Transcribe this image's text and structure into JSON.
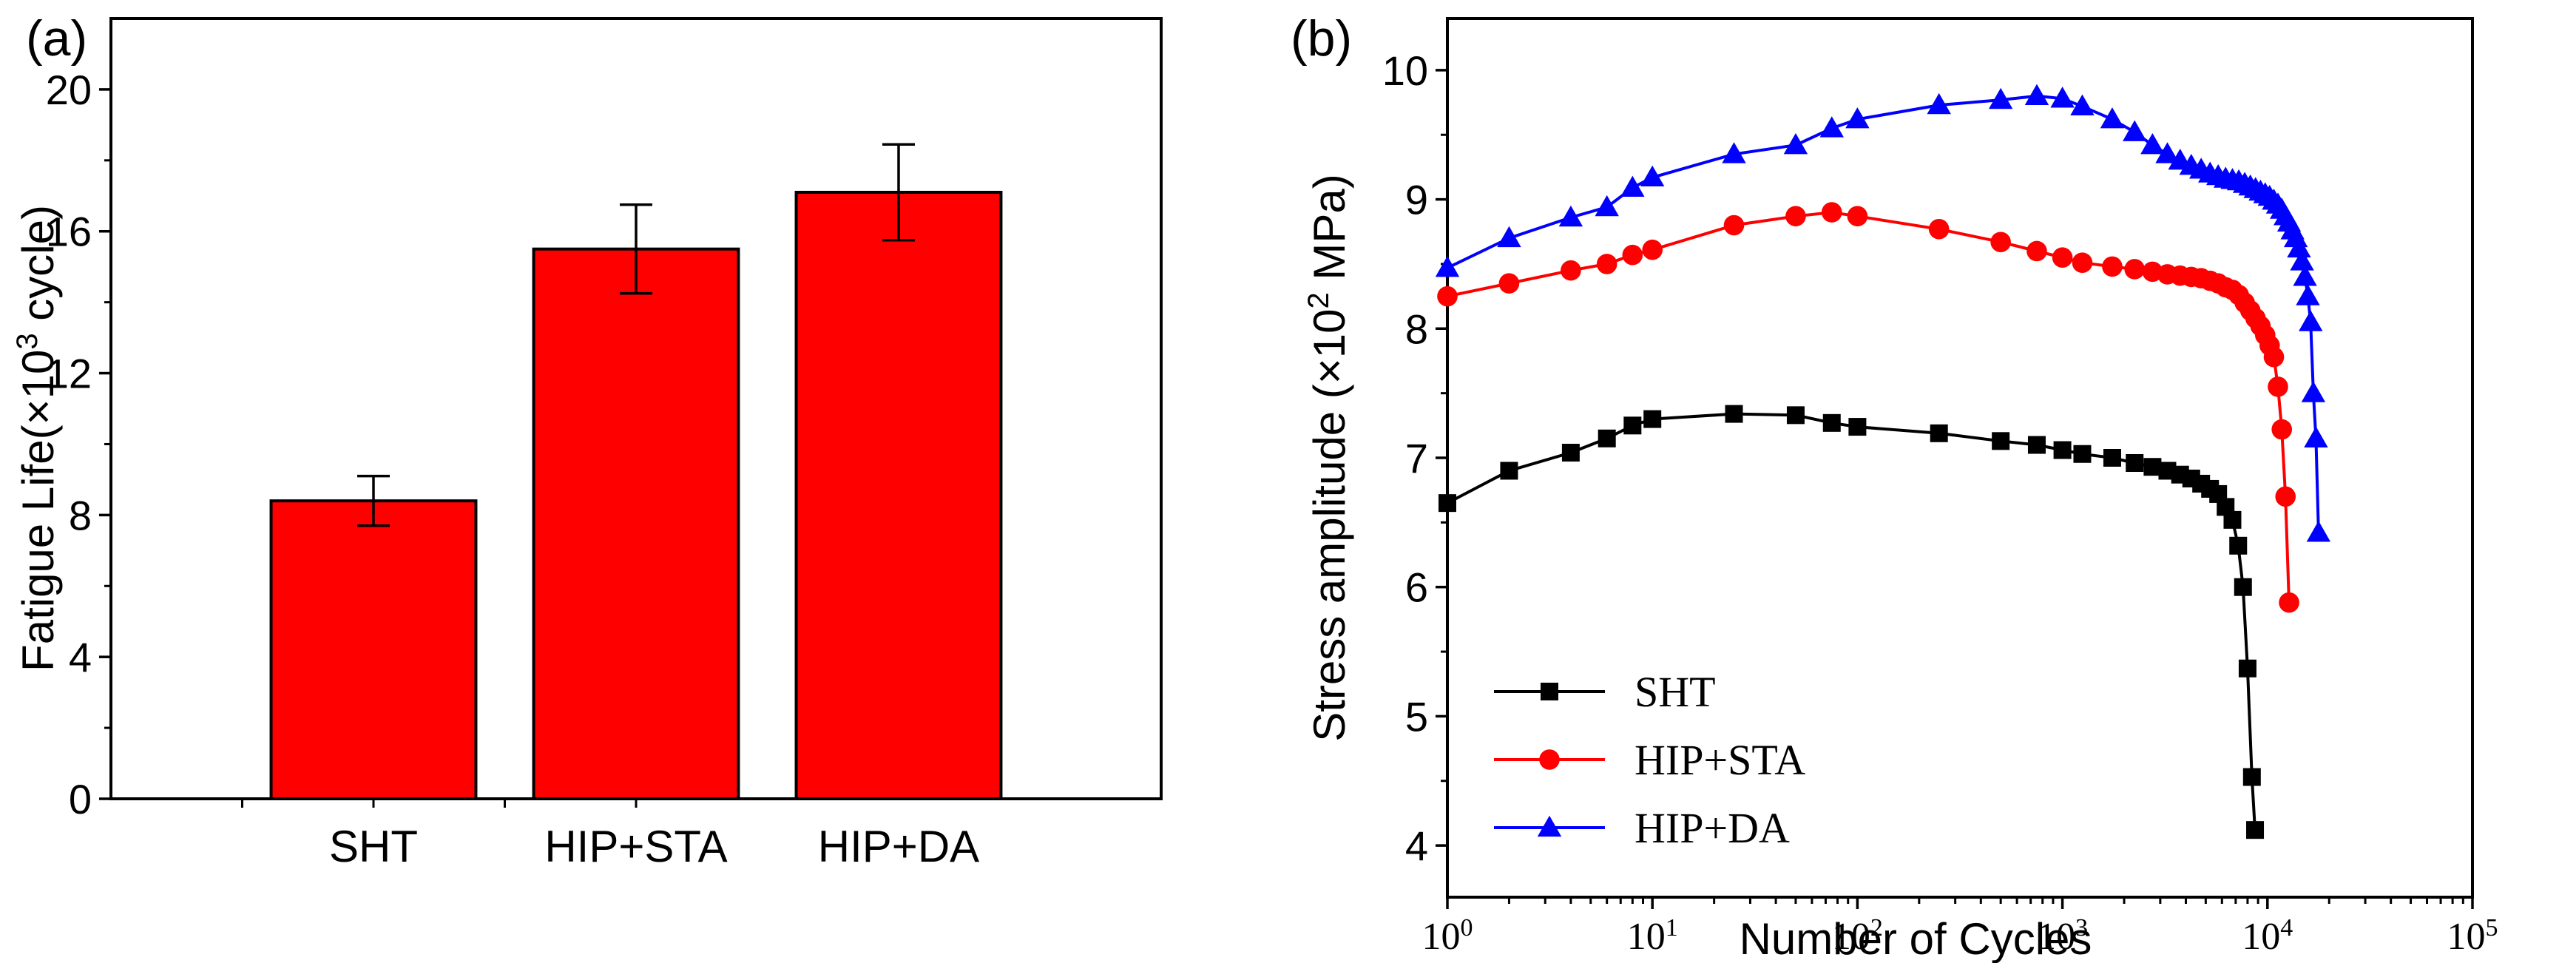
{
  "chart_data": [
    {
      "panel": "(a)",
      "type": "bar",
      "title": "",
      "xlabel": "",
      "ylabel_prefix": "Fatigue Life(×10",
      "ylabel_sup": "3",
      "ylabel_suffix": " cycle)",
      "categories": [
        "SHT",
        "HIP+STA",
        "HIP+DA"
      ],
      "values": [
        8.4,
        15.5,
        17.1
      ],
      "errors": [
        0.7,
        1.25,
        1.35
      ],
      "ylim": [
        0,
        22
      ],
      "yticks": [
        0,
        4,
        8,
        12,
        16,
        20
      ],
      "color": "#ff0000"
    },
    {
      "panel": "(b)",
      "type": "line",
      "xscale": "log",
      "xlabel": "Number of Cycles",
      "ylabel_prefix": "Stress amplitude (×10",
      "ylabel_sup": "2",
      "ylabel_suffix": " MPa)",
      "xlim": [
        1,
        100000
      ],
      "xtick_exponents": [
        0,
        1,
        2,
        3,
        4,
        5
      ],
      "ylim": [
        3.6,
        10.4
      ],
      "yticks": [
        4,
        5,
        6,
        7,
        8,
        9,
        10
      ],
      "legend_position": "lower-left",
      "series": [
        {
          "name": "SHT",
          "color": "#000000",
          "marker": "square",
          "x": [
            1,
            2,
            4,
            6,
            8,
            10,
            25,
            50,
            75,
            100,
            250,
            500,
            750,
            1000,
            1250,
            1750,
            2250,
            2750,
            3250,
            3750,
            4250,
            4750,
            5250,
            5750,
            6250,
            6750,
            7200,
            7600,
            8000,
            8400,
            8700
          ],
          "y": [
            6.65,
            6.9,
            7.04,
            7.15,
            7.25,
            7.3,
            7.34,
            7.33,
            7.27,
            7.24,
            7.19,
            7.13,
            7.1,
            7.06,
            7.03,
            7.0,
            6.96,
            6.93,
            6.9,
            6.87,
            6.84,
            6.8,
            6.76,
            6.72,
            6.62,
            6.52,
            6.32,
            6.0,
            5.37,
            4.53,
            4.12
          ]
        },
        {
          "name": "HIP+STA",
          "color": "#ff0000",
          "marker": "circle",
          "x": [
            1,
            2,
            4,
            6,
            8,
            10,
            25,
            50,
            75,
            100,
            250,
            500,
            750,
            1000,
            1250,
            1750,
            2250,
            2750,
            3250,
            3750,
            4250,
            4750,
            5250,
            5750,
            6250,
            6750,
            7250,
            7750,
            8250,
            8750,
            9250,
            9750,
            10250,
            10750,
            11250,
            11750,
            12250,
            12750
          ],
          "y": [
            8.25,
            8.35,
            8.45,
            8.5,
            8.57,
            8.61,
            8.8,
            8.87,
            8.9,
            8.87,
            8.77,
            8.67,
            8.6,
            8.55,
            8.51,
            8.48,
            8.46,
            8.44,
            8.42,
            8.41,
            8.4,
            8.39,
            8.37,
            8.35,
            8.32,
            8.3,
            8.26,
            8.2,
            8.14,
            8.08,
            8.02,
            7.95,
            7.87,
            7.78,
            7.55,
            7.22,
            6.7,
            5.88
          ]
        },
        {
          "name": "HIP+DA",
          "color": "#0000ff",
          "marker": "triangle",
          "x": [
            1,
            2,
            4,
            6,
            8,
            10,
            25,
            50,
            75,
            100,
            250,
            500,
            750,
            1000,
            1250,
            1750,
            2250,
            2750,
            3250,
            3750,
            4250,
            4750,
            5250,
            5750,
            6250,
            6750,
            7250,
            7750,
            8250,
            8750,
            9250,
            9750,
            10250,
            10750,
            11250,
            11750,
            12250,
            12750,
            13250,
            13750,
            14250,
            14750,
            15250,
            15750,
            16250,
            16750,
            17250,
            17750
          ],
          "y": [
            8.47,
            8.7,
            8.86,
            8.94,
            9.09,
            9.17,
            9.35,
            9.42,
            9.55,
            9.62,
            9.73,
            9.77,
            9.8,
            9.78,
            9.72,
            9.62,
            9.52,
            9.42,
            9.35,
            9.3,
            9.26,
            9.23,
            9.2,
            9.18,
            9.16,
            9.15,
            9.14,
            9.12,
            9.1,
            9.08,
            9.06,
            9.04,
            9.02,
            8.99,
            8.96,
            8.92,
            8.87,
            8.82,
            8.76,
            8.7,
            8.62,
            8.52,
            8.4,
            8.25,
            8.05,
            7.5,
            7.15,
            6.42
          ]
        }
      ]
    }
  ]
}
